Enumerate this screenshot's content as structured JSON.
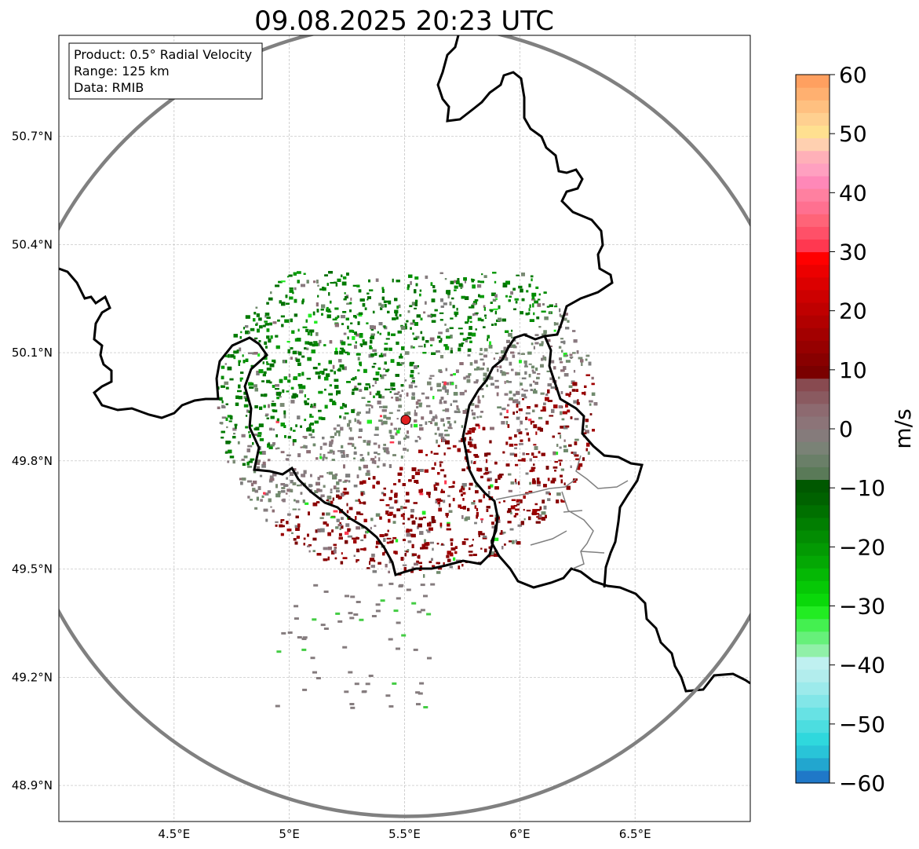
{
  "figure": {
    "title": "09.08.2025 20:23 UTC",
    "info_box": [
      "Product: 0.5° Radial Velocity",
      "Range: 125 km",
      "Data: RMIB"
    ]
  },
  "map": {
    "lon_range": [
      4.0,
      7.0
    ],
    "lat_range": [
      48.8,
      50.98
    ],
    "x_ticks": [
      {
        "value": 4.5,
        "label": "4.5°E"
      },
      {
        "value": 5.0,
        "label": "5°E"
      },
      {
        "value": 5.5,
        "label": "5.5°E"
      },
      {
        "value": 6.0,
        "label": "6°E"
      },
      {
        "value": 6.5,
        "label": "6.5°E"
      }
    ],
    "y_ticks": [
      {
        "value": 50.7,
        "label": "50.7°N"
      },
      {
        "value": 50.4,
        "label": "50.4°N"
      },
      {
        "value": 50.1,
        "label": "50.1°N"
      },
      {
        "value": 49.8,
        "label": "49.8°N"
      },
      {
        "value": 49.5,
        "label": "49.5°N"
      },
      {
        "value": 49.2,
        "label": "49.2°N"
      },
      {
        "value": 48.9,
        "label": "48.9°N"
      }
    ],
    "grid": true,
    "radar_site": {
      "lon": 5.505,
      "lat": 49.914,
      "marker_color": "#e02020"
    },
    "range_ring_km": 125,
    "range_ring_color": "#808080",
    "border_color": "#000000",
    "admin_border_color": "#808080"
  },
  "colorbar": {
    "label": "m/s",
    "range": [
      -60,
      60
    ],
    "ticks": [
      {
        "value": 60,
        "label": "60"
      },
      {
        "value": 50,
        "label": "50"
      },
      {
        "value": 40,
        "label": "40"
      },
      {
        "value": 30,
        "label": "30"
      },
      {
        "value": 20,
        "label": "20"
      },
      {
        "value": 10,
        "label": "10"
      },
      {
        "value": 0,
        "label": "0"
      },
      {
        "value": -10,
        "label": "−10"
      },
      {
        "value": -20,
        "label": "−20"
      },
      {
        "value": -30,
        "label": "−30"
      },
      {
        "value": -40,
        "label": "−40"
      },
      {
        "value": -50,
        "label": "−50"
      },
      {
        "value": -60,
        "label": "−60"
      }
    ],
    "colors_bottom_to_top": [
      "#1f78c8",
      "#22a6cf",
      "#29c4d8",
      "#2fd8dd",
      "#4cdde0",
      "#67e2e4",
      "#82e6e8",
      "#9ceaeb",
      "#b2eded",
      "#bff0f0",
      "#90f0a8",
      "#66f07a",
      "#44f050",
      "#22ec22",
      "#0ad80a",
      "#06c806",
      "#05b805",
      "#04a804",
      "#039a03",
      "#028c02",
      "#017e01",
      "#007000",
      "#006200",
      "#005800",
      "#5a7a58",
      "#6a7f68",
      "#7a8276",
      "#857b7b",
      "#8c7478",
      "#8d6a70",
      "#8a5a60",
      "#884a50",
      "#7a0000",
      "#880000",
      "#960000",
      "#a30000",
      "#b10000",
      "#bf0000",
      "#cd0000",
      "#dc0000",
      "#ec0000",
      "#ff0000",
      "#ff3850",
      "#ff5068",
      "#ff6478",
      "#ff7090",
      "#ff80a0",
      "#ff88b8",
      "#ffa0c0",
      "#ffb0b8",
      "#ffd0b0",
      "#ffe090",
      "#ffd090",
      "#ffc080",
      "#ffb070",
      "#ffa060"
    ]
  },
  "legend_semantics": {
    "negative_color": "#007a00",
    "positive_color": "#8b0000",
    "near_zero_color": "#7f7f7f"
  }
}
